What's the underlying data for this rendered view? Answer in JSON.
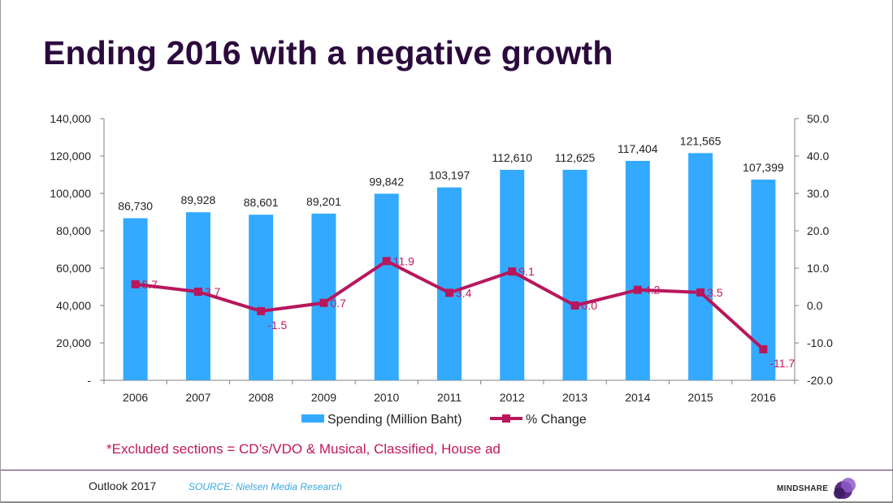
{
  "slide": {
    "title": "Ending 2016 with a negative growth",
    "footnote": "*Excluded sections = CD’s/VDO & Musical, Classified, House ad",
    "footer_label": "Outlook 2017",
    "source": "SOURCE: Nielsen Media Research",
    "logo_text": "MINDSHARE"
  },
  "colors": {
    "bar": "#33aaff",
    "line": "#b8175c",
    "line_label": "#c0175c",
    "axis": "#808080",
    "text": "#222222",
    "title": "#2b0a3d"
  },
  "chart_data": {
    "type": "bar",
    "categories": [
      "2006",
      "2007",
      "2008",
      "2009",
      "2010",
      "2011",
      "2012",
      "2013",
      "2014",
      "2015",
      "2016"
    ],
    "series": [
      {
        "name": "Spending (Million Baht)",
        "type": "bar",
        "axis": "left",
        "values": [
          86730,
          89928,
          88601,
          89201,
          99842,
          103197,
          112610,
          112625,
          117404,
          121565,
          107399
        ],
        "labels": [
          "86,730",
          "89,928",
          "88,601",
          "89,201",
          "99,842",
          "103,197",
          "112,610",
          "112,625",
          "117,404",
          "121,565",
          "107,399"
        ]
      },
      {
        "name": "% Change",
        "type": "line",
        "axis": "right",
        "values": [
          5.7,
          3.7,
          -1.5,
          0.7,
          11.9,
          3.4,
          9.1,
          0.0,
          4.2,
          3.5,
          -11.7
        ],
        "labels": [
          "5.7",
          "3.7",
          "-1.5",
          "0.7",
          "11.9",
          "3.4",
          "9.1",
          "0.0",
          "4.2",
          "3.5",
          "-11.7"
        ]
      }
    ],
    "y_left": {
      "range": [
        0,
        140000
      ],
      "ticks": [
        0,
        20000,
        40000,
        60000,
        80000,
        100000,
        120000,
        140000
      ],
      "tick_labels": [
        "-",
        "20,000",
        "40,000",
        "60,000",
        "80,000",
        "100,000",
        "120,000",
        "140,000"
      ]
    },
    "y_right": {
      "range": [
        -20,
        50
      ],
      "ticks": [
        -20,
        -10,
        0,
        10,
        20,
        30,
        40,
        50
      ],
      "tick_labels": [
        "-20.0",
        "-10.0",
        "0.0",
        "10.0",
        "20.0",
        "30.0",
        "40.0",
        "50.0"
      ]
    },
    "grid": false,
    "legend": "bottom"
  }
}
